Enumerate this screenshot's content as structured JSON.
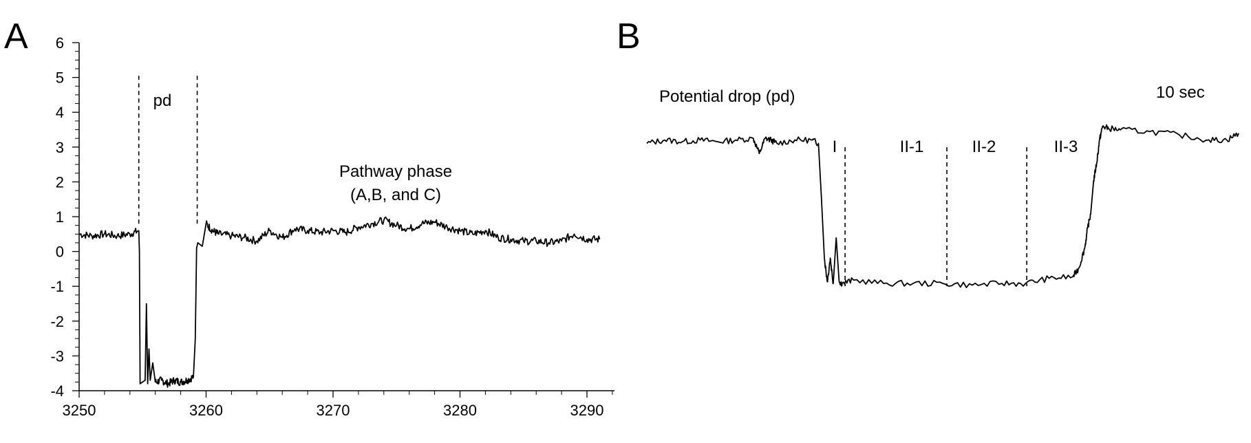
{
  "chart_data": [
    {
      "type": "line",
      "panel_label": "A",
      "xlim": [
        3250,
        3292
      ],
      "ylim": [
        -4,
        6
      ],
      "x_ticks": [
        3250,
        3260,
        3270,
        3280,
        3290
      ],
      "y_ticks": [
        6,
        5,
        4,
        3,
        2,
        1,
        0,
        -1,
        -2,
        -3,
        -4
      ],
      "grid": false,
      "annotations": [
        {
          "text": "pd"
        },
        {
          "text": "Pathway phase"
        },
        {
          "text": "(A,B, and C)"
        }
      ],
      "markers": [
        {
          "type": "dashed-vline",
          "x": 3254.7
        },
        {
          "type": "dashed-vline",
          "x": 3259.3
        }
      ],
      "series": [
        {
          "color": "#000000",
          "x": [
            3250,
            3251,
            3252,
            3253,
            3254,
            3254.7,
            3254.75,
            3254.8,
            3255.2,
            3255.3,
            3255.4,
            3255.5,
            3255.6,
            3255.8,
            3256,
            3256.5,
            3257,
            3257.5,
            3258,
            3258.5,
            3259,
            3259.15,
            3259.25,
            3259.35,
            3259.7,
            3260,
            3260.5,
            3261,
            3262,
            3263,
            3264,
            3265,
            3266,
            3267,
            3268,
            3269,
            3270,
            3271,
            3272,
            3273,
            3274,
            3275,
            3276,
            3277,
            3278,
            3279,
            3280,
            3281,
            3282,
            3283,
            3284,
            3285,
            3286,
            3287,
            3288,
            3289,
            3290,
            3291
          ],
          "y": [
            0.5,
            0.45,
            0.5,
            0.45,
            0.5,
            0.6,
            0.0,
            -3.8,
            -3.7,
            -1.5,
            -3.8,
            -2.8,
            -3.7,
            -3.2,
            -3.75,
            -3.7,
            -3.8,
            -3.7,
            -3.75,
            -3.7,
            -3.6,
            -2.5,
            0.1,
            0.25,
            0.15,
            0.8,
            0.6,
            0.5,
            0.45,
            0.4,
            0.3,
            0.6,
            0.4,
            0.65,
            0.6,
            0.55,
            0.6,
            0.55,
            0.7,
            0.8,
            0.9,
            0.75,
            0.65,
            0.8,
            0.85,
            0.7,
            0.6,
            0.5,
            0.6,
            0.4,
            0.35,
            0.3,
            0.3,
            0.25,
            0.3,
            0.5,
            0.35,
            0.35
          ]
        }
      ]
    },
    {
      "type": "line",
      "panel_label": "B",
      "axes": "none",
      "xlim": [
        0,
        100
      ],
      "ylim": [
        -4,
        6
      ],
      "annotations": [
        {
          "text": "Potential drop (pd)"
        },
        {
          "text": "10 sec"
        }
      ],
      "region_labels": [
        "I",
        "II-1",
        "II-2",
        "II-3"
      ],
      "markers": [
        {
          "type": "dashed-vline",
          "x": 33.5
        },
        {
          "type": "dashed-vline",
          "x": 50.7
        },
        {
          "type": "dashed-vline",
          "x": 64.2
        }
      ],
      "series": [
        {
          "color": "#000000",
          "x": [
            0,
            3,
            6,
            9,
            12,
            15,
            18,
            19,
            20,
            21,
            22,
            25,
            28,
            29,
            29.5,
            30,
            30.5,
            31,
            31.5,
            32,
            32.5,
            33,
            35,
            40,
            45,
            50,
            55,
            60,
            64,
            68,
            72,
            73,
            74,
            74.5,
            75,
            75.5,
            76,
            76.5,
            77,
            78,
            80,
            85,
            90,
            95,
            98,
            100
          ],
          "y": [
            3.1,
            3.2,
            3.15,
            3.2,
            3.15,
            3.2,
            3.25,
            2.8,
            3.25,
            3.2,
            3.1,
            3.2,
            3.2,
            3.1,
            1.5,
            -0.3,
            -1.0,
            -0.3,
            -1.05,
            0.3,
            -1.0,
            -1.05,
            -0.95,
            -1.05,
            -1.05,
            -1.05,
            -1.1,
            -1.05,
            -1.05,
            -0.9,
            -0.85,
            -0.6,
            0.0,
            0.6,
            1.0,
            2.0,
            2.5,
            3.2,
            3.6,
            3.55,
            3.5,
            3.45,
            3.35,
            3.2,
            3.2,
            3.4
          ]
        }
      ]
    }
  ]
}
